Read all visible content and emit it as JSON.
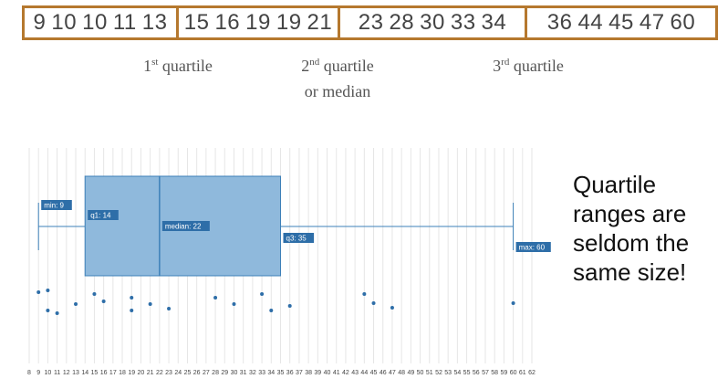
{
  "top_groups": [
    {
      "numbers": [
        "9",
        "10",
        "10",
        "11",
        "13"
      ]
    },
    {
      "numbers": [
        "15",
        "16",
        "19",
        "19",
        "21"
      ]
    },
    {
      "numbers": [
        "23",
        "28",
        "30",
        "33",
        "34"
      ]
    },
    {
      "numbers": [
        "36",
        "44",
        "45",
        "47",
        "60"
      ]
    }
  ],
  "quartile_labels": {
    "q1": {
      "num": "1",
      "sup": "st",
      "text": "quartile"
    },
    "q2": {
      "num": "2",
      "sup": "nd",
      "text": "quartile",
      "line2": "or median"
    },
    "q3": {
      "num": "3",
      "sup": "rd",
      "text": "quartile"
    }
  },
  "side_text": [
    "Quartile",
    "ranges are",
    "seldom the",
    "same size!"
  ],
  "chart_data": {
    "type": "boxplot",
    "axis": {
      "min": 8,
      "max": 62,
      "step": 1
    },
    "stats": {
      "min": 9,
      "q1": 14,
      "median": 22,
      "q3": 35,
      "max": 60
    },
    "stat_labels": {
      "min": "min: 9",
      "q1": "q1: 14",
      "median": "median: 22",
      "q3": "q3: 35",
      "max": "max: 60"
    },
    "points": [
      9,
      10,
      10,
      11,
      13,
      15,
      16,
      19,
      19,
      21,
      23,
      28,
      30,
      33,
      34,
      36,
      44,
      45,
      47,
      60
    ],
    "box_color": "#8fb9dc",
    "box_border": "#3d80b8",
    "point_color": "#2e6ea8",
    "tag_color": "#2e6ea8",
    "grid": true
  }
}
